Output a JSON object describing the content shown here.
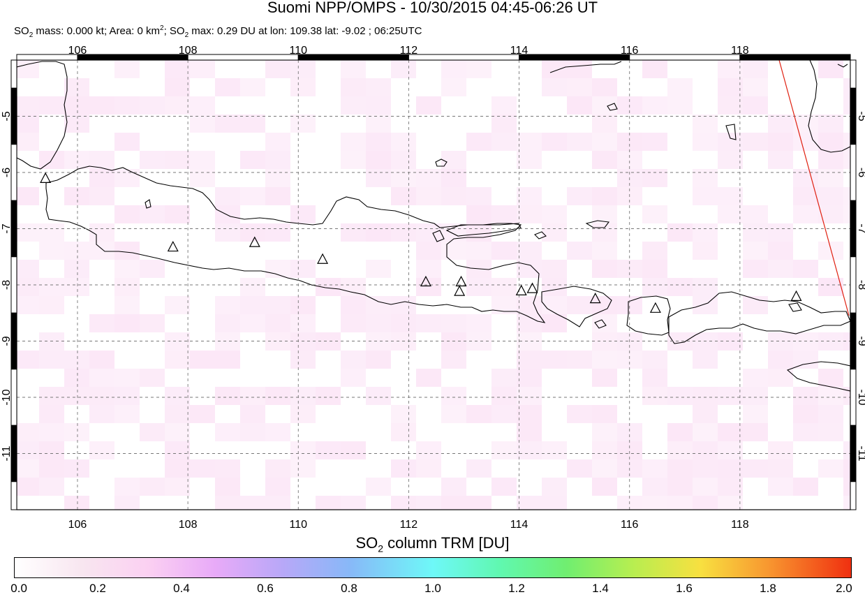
{
  "header": {
    "title": "Suomi NPP/OMPS - 10/30/2015 04:45-06:26 UT",
    "subtitle_mass": "SO",
    "subtitle_parts": {
      "mass_label": "mass: 0.000 kt; Area: 0 km",
      "area_sup": "2",
      "max_label": "; SO",
      "max_sub": "2",
      "max_value": " max: 0.29 DU at lon: 109.38 lat: -9.02 ; 06:25UTC",
      "mass_sub": "2"
    }
  },
  "map": {
    "lon_range": [
      104.9,
      120.0
    ],
    "lat_range": [
      -12.0,
      -4.0
    ],
    "lon_ticks": [
      "106",
      "108",
      "110",
      "112",
      "114",
      "116",
      "118"
    ],
    "lat_ticks": [
      "-5",
      "-6",
      "-7",
      "-8",
      "-9",
      "-10",
      "-11"
    ],
    "grid": true,
    "volcanoes": [
      {
        "lon": 105.42,
        "lat": -6.1
      },
      {
        "lon": 107.73,
        "lat": -7.32
      },
      {
        "lon": 109.21,
        "lat": -7.24
      },
      {
        "lon": 110.44,
        "lat": -7.54
      },
      {
        "lon": 112.31,
        "lat": -7.94
      },
      {
        "lon": 112.95,
        "lat": -7.94
      },
      {
        "lon": 112.92,
        "lat": -8.11
      },
      {
        "lon": 114.04,
        "lat": -8.1
      },
      {
        "lon": 114.24,
        "lat": -8.06
      },
      {
        "lon": 115.38,
        "lat": -8.24
      },
      {
        "lon": 116.47,
        "lat": -8.41
      },
      {
        "lon": 119.02,
        "lat": -8.2
      }
    ],
    "orbit_edge_color": "#e02010"
  },
  "colorbar": {
    "title": "SO",
    "title_sub": "2",
    "title_rest": " column TRM [DU]",
    "ticks": [
      "0.0",
      "0.2",
      "0.4",
      "0.6",
      "0.8",
      "1.0",
      "1.2",
      "1.4",
      "1.6",
      "1.8",
      "2.0"
    ]
  }
}
